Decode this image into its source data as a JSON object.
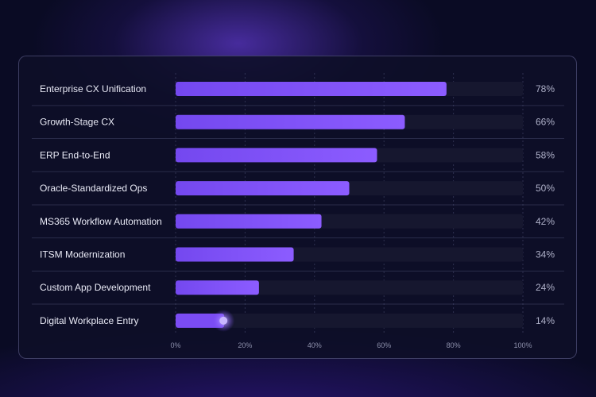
{
  "chart_data": {
    "type": "bar",
    "orientation": "horizontal",
    "categories": [
      "Enterprise CX Unification",
      "Growth-Stage CX",
      "ERP End-to-End",
      "Oracle-Standardized Ops",
      "MS365 Workflow Automation",
      "ITSM Modernization",
      "Custom App Development",
      "Digital Workplace Entry"
    ],
    "values": [
      78,
      66,
      58,
      50,
      42,
      34,
      24,
      14
    ],
    "value_labels": [
      "78%",
      "66%",
      "58%",
      "50%",
      "42%",
      "34%",
      "24%",
      "14%"
    ],
    "x_ticks": [
      "0%",
      "20%",
      "40%",
      "60%",
      "80%",
      "100%"
    ],
    "xlim": [
      0,
      100
    ],
    "grid": true,
    "legend": "none",
    "colors": {
      "bar": "#7b4cf4",
      "bar_highlight": "#8f62ff",
      "track": "#16172f",
      "grid": "#45476a",
      "marker": "#c8b6ff"
    }
  }
}
